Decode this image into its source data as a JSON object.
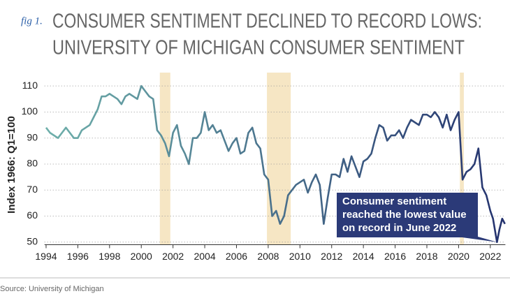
{
  "chart_data": {
    "type": "line",
    "fig_label": "fig 1.",
    "title": [
      "CONSUMER SENTIMENT DECLINED TO RECORD LOWS:",
      "UNIVERSITY OF MICHIGAN CONSUMER SENTIMENT"
    ],
    "y_label": "Index 1966: Q1=100",
    "source": "Source: University of Michigan",
    "x": [
      1994,
      1994.25,
      1994.5,
      1994.75,
      1995,
      1995.25,
      1995.5,
      1995.75,
      1996,
      1996.25,
      1996.5,
      1996.75,
      1997,
      1997.25,
      1997.5,
      1997.75,
      1998,
      1998.25,
      1998.5,
      1998.75,
      1999,
      1999.25,
      1999.5,
      1999.75,
      2000,
      2000.25,
      2000.5,
      2000.75,
      2001,
      2001.25,
      2001.5,
      2001.75,
      2002,
      2002.25,
      2002.5,
      2002.75,
      2003,
      2003.25,
      2003.5,
      2003.75,
      2004,
      2004.25,
      2004.5,
      2004.75,
      2005,
      2005.25,
      2005.5,
      2005.75,
      2006,
      2006.25,
      2006.5,
      2006.75,
      2007,
      2007.25,
      2007.5,
      2007.75,
      2008,
      2008.25,
      2008.5,
      2008.75,
      2009,
      2009.25,
      2009.5,
      2009.75,
      2010,
      2010.25,
      2010.5,
      2010.75,
      2011,
      2011.25,
      2011.5,
      2011.75,
      2012,
      2012.25,
      2012.5,
      2012.75,
      2013,
      2013.25,
      2013.5,
      2013.75,
      2014,
      2014.25,
      2014.5,
      2014.75,
      2015,
      2015.25,
      2015.5,
      2015.75,
      2016,
      2016.25,
      2016.5,
      2016.75,
      2017,
      2017.25,
      2017.5,
      2017.75,
      2018,
      2018.25,
      2018.5,
      2018.75,
      2019,
      2019.25,
      2019.5,
      2019.75,
      2020,
      2020.25,
      2020.5,
      2020.75,
      2021,
      2021.25,
      2021.5,
      2021.75,
      2022,
      2022.17,
      2022.42,
      2022.58,
      2022.75,
      2022.92
    ],
    "series": [
      {
        "name": "Consumer sentiment",
        "gradient": [
          "#6fb0ab",
          "#24326e"
        ],
        "values": [
          94,
          92,
          91,
          90,
          92,
          94,
          92,
          90,
          90,
          93,
          94,
          95,
          98,
          101,
          106,
          106,
          107,
          106,
          105,
          103,
          106,
          107,
          106,
          105,
          110,
          108,
          106,
          105,
          93,
          91,
          88,
          83,
          92,
          95,
          87,
          84,
          80,
          90,
          90,
          92,
          100,
          93,
          95,
          92,
          93,
          89,
          85,
          88,
          90,
          84,
          85,
          92,
          94,
          88,
          86,
          76,
          74,
          60,
          62,
          57,
          60,
          68,
          70,
          72,
          73,
          74,
          69,
          73,
          76,
          72,
          57,
          67,
          76,
          76,
          75,
          82,
          77,
          83,
          79,
          75,
          81,
          82,
          84,
          90,
          95,
          94,
          89,
          91,
          91,
          93,
          90,
          94,
          97,
          96,
          95,
          99,
          99,
          98,
          100,
          98,
          94,
          99,
          93,
          97,
          100,
          74,
          77,
          78,
          80,
          86,
          71,
          68,
          62,
          59,
          50,
          55,
          59,
          57
        ]
      }
    ],
    "xlim": [
      1993.9,
      2022.95
    ],
    "ylim": [
      49,
      113
    ],
    "xticks": [
      1994,
      1996,
      1998,
      2000,
      2002,
      2004,
      2006,
      2008,
      2010,
      2012,
      2014,
      2016,
      2018,
      2020,
      2022
    ],
    "yticks": [
      50,
      60,
      70,
      80,
      90,
      100,
      110
    ],
    "grid": true,
    "shaded_ranges": [
      [
        2001.17,
        2001.83
      ],
      [
        2007.92,
        2009.42
      ],
      [
        2020.08,
        2020.33
      ]
    ],
    "shade_color": "#f6e6c4",
    "annotation": {
      "text": [
        "Consumer sentiment",
        "reached the lowest value",
        "on record in June 2022"
      ],
      "x": 2022.42,
      "y": 50,
      "color": "#2b3a78"
    }
  }
}
